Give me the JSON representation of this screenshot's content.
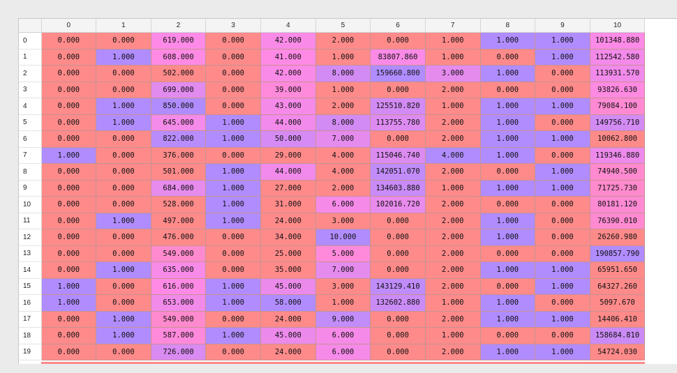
{
  "table": {
    "columns": [
      "0",
      "1",
      "2",
      "3",
      "4",
      "5",
      "6",
      "7",
      "8",
      "9",
      "10"
    ],
    "rows": [
      {
        "index": "0",
        "cells": [
          "0.000",
          "0.000",
          "619.000",
          "0.000",
          "42.000",
          "2.000",
          "0.000",
          "1.000",
          "1.000",
          "1.000",
          "101348.880"
        ]
      },
      {
        "index": "1",
        "cells": [
          "0.000",
          "1.000",
          "608.000",
          "0.000",
          "41.000",
          "1.000",
          "83807.860",
          "1.000",
          "0.000",
          "1.000",
          "112542.580"
        ]
      },
      {
        "index": "2",
        "cells": [
          "0.000",
          "0.000",
          "502.000",
          "0.000",
          "42.000",
          "8.000",
          "159660.800",
          "3.000",
          "1.000",
          "0.000",
          "113931.570"
        ]
      },
      {
        "index": "3",
        "cells": [
          "0.000",
          "0.000",
          "699.000",
          "0.000",
          "39.000",
          "1.000",
          "0.000",
          "2.000",
          "0.000",
          "0.000",
          "93826.630"
        ]
      },
      {
        "index": "4",
        "cells": [
          "0.000",
          "1.000",
          "850.000",
          "0.000",
          "43.000",
          "2.000",
          "125510.820",
          "1.000",
          "1.000",
          "1.000",
          "79084.100"
        ]
      },
      {
        "index": "5",
        "cells": [
          "0.000",
          "1.000",
          "645.000",
          "1.000",
          "44.000",
          "8.000",
          "113755.780",
          "2.000",
          "1.000",
          "0.000",
          "149756.710"
        ]
      },
      {
        "index": "6",
        "cells": [
          "0.000",
          "0.000",
          "822.000",
          "1.000",
          "50.000",
          "7.000",
          "0.000",
          "2.000",
          "1.000",
          "1.000",
          "10062.800"
        ]
      },
      {
        "index": "7",
        "cells": [
          "1.000",
          "0.000",
          "376.000",
          "0.000",
          "29.000",
          "4.000",
          "115046.740",
          "4.000",
          "1.000",
          "0.000",
          "119346.880"
        ]
      },
      {
        "index": "8",
        "cells": [
          "0.000",
          "0.000",
          "501.000",
          "1.000",
          "44.000",
          "4.000",
          "142051.070",
          "2.000",
          "0.000",
          "1.000",
          "74940.500"
        ]
      },
      {
        "index": "9",
        "cells": [
          "0.000",
          "0.000",
          "684.000",
          "1.000",
          "27.000",
          "2.000",
          "134603.880",
          "1.000",
          "1.000",
          "1.000",
          "71725.730"
        ]
      },
      {
        "index": "10",
        "cells": [
          "0.000",
          "0.000",
          "528.000",
          "1.000",
          "31.000",
          "6.000",
          "102016.720",
          "2.000",
          "0.000",
          "0.000",
          "80181.120"
        ]
      },
      {
        "index": "11",
        "cells": [
          "0.000",
          "1.000",
          "497.000",
          "1.000",
          "24.000",
          "3.000",
          "0.000",
          "2.000",
          "1.000",
          "0.000",
          "76390.010"
        ]
      },
      {
        "index": "12",
        "cells": [
          "0.000",
          "0.000",
          "476.000",
          "0.000",
          "34.000",
          "10.000",
          "0.000",
          "2.000",
          "1.000",
          "0.000",
          "26260.980"
        ]
      },
      {
        "index": "13",
        "cells": [
          "0.000",
          "0.000",
          "549.000",
          "0.000",
          "25.000",
          "5.000",
          "0.000",
          "2.000",
          "0.000",
          "0.000",
          "190857.790"
        ]
      },
      {
        "index": "14",
        "cells": [
          "0.000",
          "1.000",
          "635.000",
          "0.000",
          "35.000",
          "7.000",
          "0.000",
          "2.000",
          "1.000",
          "1.000",
          "65951.650"
        ]
      },
      {
        "index": "15",
        "cells": [
          "1.000",
          "0.000",
          "616.000",
          "1.000",
          "45.000",
          "3.000",
          "143129.410",
          "2.000",
          "0.000",
          "1.000",
          "64327.260"
        ]
      },
      {
        "index": "16",
        "cells": [
          "1.000",
          "0.000",
          "653.000",
          "1.000",
          "58.000",
          "1.000",
          "132602.880",
          "1.000",
          "1.000",
          "0.000",
          "5097.670"
        ]
      },
      {
        "index": "17",
        "cells": [
          "0.000",
          "1.000",
          "549.000",
          "0.000",
          "24.000",
          "9.000",
          "0.000",
          "2.000",
          "1.000",
          "1.000",
          "14406.410"
        ]
      },
      {
        "index": "18",
        "cells": [
          "0.000",
          "1.000",
          "587.000",
          "1.000",
          "45.000",
          "6.000",
          "0.000",
          "1.000",
          "0.000",
          "0.000",
          "158684.810"
        ]
      },
      {
        "index": "19",
        "cells": [
          "0.000",
          "0.000",
          "726.000",
          "0.000",
          "24.000",
          "6.000",
          "0.000",
          "2.000",
          "1.000",
          "1.000",
          "54724.030"
        ]
      }
    ]
  },
  "heatmap": {
    "low_color": "#ff8a8a",
    "high_color": "#b08cff",
    "column_ranges": [
      [
        0,
        1
      ],
      [
        0,
        1
      ],
      [
        376,
        850
      ],
      [
        0,
        1
      ],
      [
        24,
        58
      ],
      [
        1,
        10
      ],
      [
        0,
        159660.8
      ],
      [
        1,
        4
      ],
      [
        0,
        1
      ],
      [
        0,
        1
      ],
      [
        5097.67,
        190857.79
      ]
    ]
  }
}
